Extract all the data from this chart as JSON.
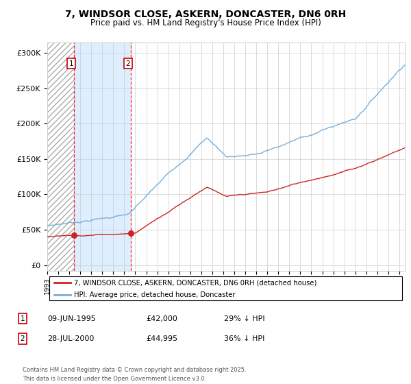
{
  "title_line1": "7, WINDSOR CLOSE, ASKERN, DONCASTER, DN6 0RH",
  "title_line2": "Price paid vs. HM Land Registry's House Price Index (HPI)",
  "hpi_color": "#7aadd4",
  "price_color": "#cc2222",
  "sale1_x": 1995.45,
  "sale1_price": 42000,
  "sale2_x": 2000.58,
  "sale2_price": 44995,
  "legend1": "7, WINDSOR CLOSE, ASKERN, DONCASTER, DN6 0RH (detached house)",
  "legend2": "HPI: Average price, detached house, Doncaster",
  "note1_date": "09-JUN-1995",
  "note1_price": "£42,000",
  "note1_hpi": "29% ↓ HPI",
  "note2_date": "28-JUL-2000",
  "note2_price": "£44,995",
  "note2_hpi": "36% ↓ HPI",
  "footer": "Contains HM Land Registry data © Crown copyright and database right 2025.\nThis data is licensed under the Open Government Licence v3.0.",
  "yticks": [
    0,
    50000,
    100000,
    150000,
    200000,
    250000,
    300000
  ],
  "ylabels": [
    "£0",
    "£50K",
    "£100K",
    "£150K",
    "£200K",
    "£250K",
    "£300K"
  ],
  "ylim": [
    -8000,
    315000
  ],
  "xlim": [
    1993,
    2025.5
  ]
}
